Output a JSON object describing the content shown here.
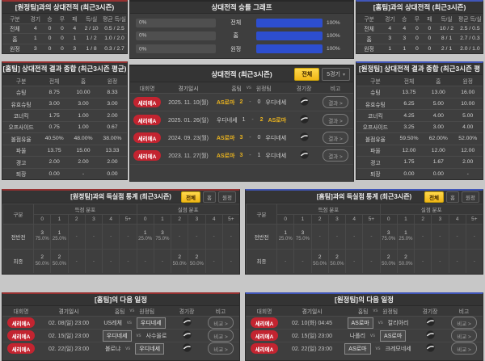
{
  "colors": {
    "home_accent": "#973131",
    "away_accent": "#4156b8",
    "bar_blue": "#2d4ecf",
    "highlight_yellow": "#e9b31f",
    "badge_red": "#c32430",
    "tab_selected_yellow": "#f5c518"
  },
  "record_left": {
    "title": "[원정팀]과의 상대전적 (최근3시즌)",
    "headers": [
      "구분",
      "경기",
      "승",
      "무",
      "패",
      "득/실",
      "평균 득/실"
    ],
    "rows": [
      {
        "label": "전체",
        "cells": [
          "4",
          "0",
          "0",
          "4",
          "2 / 10",
          "0.5 / 2.5"
        ]
      },
      {
        "label": "홈",
        "cells": [
          "1",
          "0",
          "0",
          "1",
          "1 / 2",
          "1.0 / 2.0"
        ]
      },
      {
        "label": "원정",
        "cells": [
          "3",
          "0",
          "0",
          "3",
          "1 / 8",
          "0.3 / 2.7"
        ]
      }
    ]
  },
  "winrate": {
    "title": "상대전적 승률 그래프",
    "rows": [
      {
        "label": "전체",
        "left": "0%",
        "right": "100%",
        "left_val": 0,
        "right_val": 100
      },
      {
        "label": "홈",
        "left": "0%",
        "right": "100%",
        "left_val": 0,
        "right_val": 100
      },
      {
        "label": "원정",
        "left": "0%",
        "right": "100%",
        "left_val": 0,
        "right_val": 100
      }
    ]
  },
  "record_right": {
    "title": "[홈팀]과의 상대전적 (최근3시즌)",
    "headers": [
      "구분",
      "경기",
      "승",
      "무",
      "패",
      "득/실",
      "평균 득/실"
    ],
    "rows": [
      {
        "label": "전체",
        "cells": [
          "4",
          "4",
          "0",
          "0",
          "10 / 2",
          "2.5 / 0.5"
        ]
      },
      {
        "label": "홈",
        "cells": [
          "3",
          "3",
          "0",
          "0",
          "8 / 1",
          "2.7 / 0.3"
        ]
      },
      {
        "label": "원정",
        "cells": [
          "1",
          "1",
          "0",
          "0",
          "2 / 1",
          "2.0 / 1.0"
        ]
      }
    ]
  },
  "summary_left": {
    "title": "[홈팀] 상대전적 결과 종합 (최근3시즌 평균)",
    "headers": [
      "구분",
      "전체",
      "홈",
      "원정"
    ],
    "rows": [
      [
        "슈팅",
        "8.75",
        "10.00",
        "8.33"
      ],
      [
        "유효슈팅",
        "3.00",
        "3.00",
        "3.00"
      ],
      [
        "코너킥",
        "1.75",
        "1.00",
        "2.00"
      ],
      [
        "오프사이드",
        "0.75",
        "1.00",
        "0.67"
      ],
      [
        "볼점유율",
        "40.50%",
        "48.00%",
        "38.00%"
      ],
      [
        "파울",
        "13.75",
        "15.00",
        "13.33"
      ],
      [
        "경고",
        "2.00",
        "2.00",
        "2.00"
      ],
      [
        "퇴장",
        "0.00",
        "-",
        "0.00"
      ]
    ]
  },
  "summary_right": {
    "title": "[원정팀] 상대전적 결과 종합 (최근3시즌 평균)",
    "headers": [
      "구분",
      "전체",
      "홈",
      "원정"
    ],
    "rows": [
      [
        "슈팅",
        "13.75",
        "13.00",
        "16.00"
      ],
      [
        "유효슈팅",
        "6.25",
        "5.00",
        "10.00"
      ],
      [
        "코너킥",
        "4.25",
        "4.00",
        "5.00"
      ],
      [
        "오프사이드",
        "3.25",
        "3.00",
        "4.00"
      ],
      [
        "볼점유율",
        "59.50%",
        "62.00%",
        "52.00%"
      ],
      [
        "파울",
        "12.00",
        "12.00",
        "12.00"
      ],
      [
        "경고",
        "1.75",
        "1.67",
        "2.00"
      ],
      [
        "퇴장",
        "0.00",
        "0.00",
        "-"
      ]
    ]
  },
  "results": {
    "title": "상대전적 (최근3시즌)",
    "tab": "전체",
    "dropdown": "5경기",
    "score_sep": "-",
    "headers": {
      "league": "대회명",
      "date": "경기일시",
      "home": "홈팀",
      "vs": "vs",
      "away": "원정팀",
      "stadium": "경기장",
      "note": "비고"
    },
    "rows": [
      {
        "league": "세리에A",
        "date": "2025. 11. 10(월)",
        "home": {
          "name": "AS로마",
          "hl": true
        },
        "score": {
          "h": "2",
          "a": "0",
          "hl": "h"
        },
        "away": {
          "name": "우디네세",
          "hl": false
        },
        "note": "결과 >"
      },
      {
        "league": "세리에A",
        "date": "2025. 01. 26(일)",
        "home": {
          "name": "우디네세",
          "hl": false
        },
        "score": {
          "h": "1",
          "a": "2",
          "hl": "a"
        },
        "away": {
          "name": "AS로마",
          "hl": true
        },
        "note": "결과 >"
      },
      {
        "league": "세리에A",
        "date": "2024. 09. 23(월)",
        "home": {
          "name": "AS로마",
          "hl": true
        },
        "score": {
          "h": "3",
          "a": "0",
          "hl": "h"
        },
        "away": {
          "name": "우디네세",
          "hl": false
        },
        "note": "결과 >"
      },
      {
        "league": "세리에A",
        "date": "2023. 11. 27(월)",
        "home": {
          "name": "AS로마",
          "hl": true
        },
        "score": {
          "h": "3",
          "a": "1",
          "hl": "h"
        },
        "away": {
          "name": "우디네세",
          "hl": false
        },
        "note": "결과 >"
      }
    ]
  },
  "goals_left": {
    "title": "[원정팀]과의 득실점 통계 (최근3시즌)",
    "tabs": [
      "전체",
      "홈",
      "원정"
    ],
    "selected": "전체",
    "col_label": "구분",
    "score_label": "득점 분포",
    "concede_label": "실점 분포",
    "bins": [
      "0",
      "1",
      "2",
      "3",
      "4",
      "5+"
    ],
    "empty": "-",
    "rows": [
      {
        "label": "전반전",
        "score": [
          {
            "n": "3",
            "p": "75.0%"
          },
          {
            "n": "1",
            "p": "25.0%"
          },
          null,
          null,
          null,
          null
        ],
        "concede": [
          {
            "n": "1",
            "p": "25.0%"
          },
          {
            "n": "3",
            "p": "75.0%"
          },
          null,
          null,
          null,
          null
        ]
      },
      {
        "label": "최종",
        "score": [
          {
            "n": "2",
            "p": "50.0%"
          },
          {
            "n": "2",
            "p": "50.0%"
          },
          null,
          null,
          null,
          null
        ],
        "concede": [
          null,
          null,
          {
            "n": "2",
            "p": "50.0%"
          },
          {
            "n": "2",
            "p": "50.0%"
          },
          null,
          null
        ]
      }
    ]
  },
  "goals_right": {
    "title": "[홈팀]과의 득실점 통계 (최근3시즌)",
    "tabs": [
      "전체",
      "홈",
      "원정"
    ],
    "selected": "전체",
    "col_label": "구분",
    "score_label": "득점 분포",
    "concede_label": "실점 분포",
    "bins": [
      "0",
      "1",
      "2",
      "3",
      "4",
      "5+"
    ],
    "empty": "-",
    "rows": [
      {
        "label": "전반전",
        "score": [
          {
            "n": "1",
            "p": "25.0%"
          },
          {
            "n": "3",
            "p": "75.0%"
          },
          null,
          null,
          null,
          null
        ],
        "concede": [
          {
            "n": "3",
            "p": "75.0%"
          },
          {
            "n": "1",
            "p": "25.0%"
          },
          null,
          null,
          null,
          null
        ]
      },
      {
        "label": "최종",
        "score": [
          null,
          null,
          {
            "n": "2",
            "p": "50.0%"
          },
          {
            "n": "2",
            "p": "50.0%"
          },
          null,
          null
        ],
        "concede": [
          {
            "n": "2",
            "p": "50.0%"
          },
          {
            "n": "2",
            "p": "50.0%"
          },
          null,
          null,
          null,
          null
        ]
      }
    ]
  },
  "schedule_left": {
    "title": "[홈팀]의 다음 일정",
    "headers": {
      "league": "대회명",
      "date": "경기일시",
      "home": "홈팀",
      "vs": "vs",
      "away": "원정팀",
      "stadium": "경기장",
      "note": "비고"
    },
    "rows": [
      {
        "league": "세리에A",
        "date": "02. 08(일) 23:00",
        "home": {
          "name": "US레체",
          "boxed": false
        },
        "away": {
          "name": "우디네세",
          "boxed": true
        },
        "note": "비교 >"
      },
      {
        "league": "세리에A",
        "date": "02. 15(일) 23:00",
        "home": {
          "name": "우디네세",
          "boxed": true
        },
        "away": {
          "name": "사수올로",
          "boxed": false
        },
        "note": "비교 >"
      },
      {
        "league": "세리에A",
        "date": "02. 22(일) 23:00",
        "home": {
          "name": "볼로냐",
          "boxed": false
        },
        "away": {
          "name": "우디네세",
          "boxed": true
        },
        "note": "비교 >"
      }
    ]
  },
  "schedule_right": {
    "title": "[원정팀]의 다음 일정",
    "headers": {
      "league": "대회명",
      "date": "경기일시",
      "home": "홈팀",
      "vs": "vs",
      "away": "원정팀",
      "stadium": "경기장",
      "note": "비고"
    },
    "rows": [
      {
        "league": "세리에A",
        "date": "02. 10(화) 04:45",
        "home": {
          "name": "AS로마",
          "boxed": true
        },
        "away": {
          "name": "칼리아리",
          "boxed": false
        },
        "note": "비교 >"
      },
      {
        "league": "세리에A",
        "date": "02. 15(일) 23:00",
        "home": {
          "name": "나폴리",
          "boxed": false
        },
        "away": {
          "name": "AS로마",
          "boxed": true
        },
        "note": "비교 >"
      },
      {
        "league": "세리에A",
        "date": "02. 22(일) 23:00",
        "home": {
          "name": "AS로마",
          "boxed": true
        },
        "away": {
          "name": "크레모네세",
          "boxed": false
        },
        "note": "비교 >"
      }
    ]
  }
}
